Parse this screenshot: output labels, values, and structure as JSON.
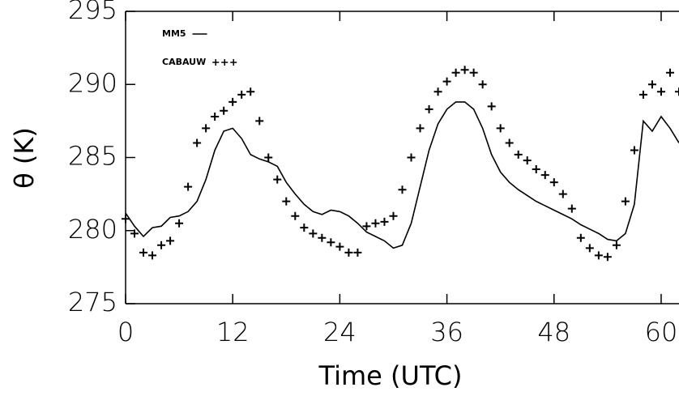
{
  "chart_data": {
    "type": "line",
    "xlabel": "Time (UTC)",
    "ylabel": "θ (K)",
    "x": [
      0,
      1,
      2,
      3,
      4,
      5,
      6,
      7,
      8,
      9,
      10,
      11,
      12,
      13,
      14,
      15,
      16,
      17,
      18,
      19,
      20,
      21,
      22,
      23,
      24,
      25,
      26,
      27,
      28,
      29,
      30,
      31,
      32,
      33,
      34,
      35,
      36,
      37,
      38,
      39,
      40,
      41,
      42,
      43,
      44,
      45,
      46,
      47,
      48,
      49,
      50,
      51,
      52,
      53,
      54,
      55,
      56,
      57,
      58,
      59,
      60,
      61,
      62
    ],
    "series": [
      {
        "name": "MM5",
        "color": "#000000",
        "style": "line",
        "values": [
          281.2,
          280.3,
          279.6,
          280.2,
          280.3,
          280.9,
          281.0,
          281.3,
          282.0,
          283.5,
          285.5,
          286.8,
          287.0,
          286.3,
          285.2,
          284.9,
          284.7,
          284.4,
          283.3,
          282.5,
          281.8,
          281.3,
          281.1,
          281.4,
          281.3,
          281.0,
          280.5,
          279.9,
          279.6,
          279.3,
          278.8,
          279.0,
          280.5,
          283.0,
          285.5,
          287.3,
          288.3,
          288.8,
          288.8,
          288.3,
          287.0,
          285.2,
          284.0,
          283.3,
          282.8,
          282.4,
          282.0,
          281.7,
          281.4,
          281.1,
          280.8,
          280.4,
          280.1,
          279.8,
          279.4,
          279.3,
          279.8,
          281.8,
          287.5,
          286.8,
          287.8,
          287.0,
          286.0
        ]
      },
      {
        "name": "CABAUW",
        "color": "#000000",
        "style": "plus",
        "values": [
          280.8,
          279.8,
          278.5,
          278.3,
          279.0,
          279.3,
          280.5,
          283.0,
          286.0,
          287.0,
          287.8,
          288.2,
          288.8,
          289.3,
          289.5,
          287.5,
          285.0,
          283.5,
          282.0,
          281.0,
          280.2,
          279.8,
          279.5,
          279.2,
          278.9,
          278.5,
          278.5,
          280.3,
          280.5,
          280.6,
          281.0,
          282.8,
          285.0,
          287.0,
          288.3,
          289.5,
          290.2,
          290.8,
          291.0,
          290.8,
          290.0,
          288.5,
          287.0,
          286.0,
          285.2,
          284.8,
          284.2,
          283.8,
          283.3,
          282.5,
          281.5,
          279.5,
          278.8,
          278.3,
          278.2,
          279.0,
          282.0,
          285.5,
          289.3,
          290.0,
          289.5,
          290.8,
          289.5
        ]
      }
    ],
    "xlim": [
      0,
      62
    ],
    "ylim": [
      275,
      295
    ],
    "xticks": [
      0,
      12,
      24,
      36,
      48,
      60
    ],
    "yticks": [
      275,
      280,
      285,
      290,
      295
    ]
  }
}
